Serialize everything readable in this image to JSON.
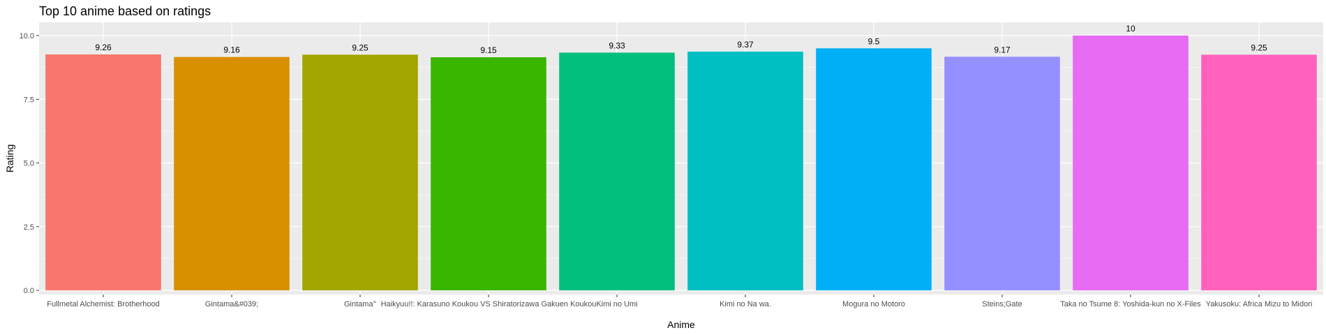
{
  "chart_data": {
    "type": "bar",
    "title": "Top 10 anime based on ratings",
    "xlabel": "Anime",
    "ylabel": "Rating",
    "ylim": [
      0,
      10
    ],
    "yticks": [
      "0.0",
      "2.5",
      "5.0",
      "7.5",
      "10.0"
    ],
    "ytick_values": [
      0,
      2.5,
      5,
      7.5,
      10
    ],
    "grid": true,
    "legend": "none",
    "categories": [
      "Fullmetal Alchemist: Brotherhood",
      "Gintama&#039;",
      "Gintama°",
      "Haikyuu!!: Karasuno Koukou VS Shiratorizawa Gakuen Koukou",
      "Kimi no Umi",
      "Kimi no Na wa.",
      "Mogura no Motoro",
      "Steins;Gate",
      "Taka no Tsume 8: Yoshida-kun no X-Files",
      "Yakusoku: Africa Mizu to Midori"
    ],
    "values": [
      9.26,
      9.16,
      9.25,
      9.15,
      9.33,
      9.37,
      9.5,
      9.17,
      10,
      9.25
    ],
    "value_labels": [
      "9.26",
      "9.16",
      "9.25",
      "9.15",
      "9.33",
      "9.37",
      "9.5",
      "9.17",
      "10",
      "9.25"
    ],
    "colors": [
      "#F8766D",
      "#D89000",
      "#A3A500",
      "#39B600",
      "#00BF7D",
      "#00BFC4",
      "#00B0F6",
      "#9590FF",
      "#E76BF3",
      "#FF62BC"
    ],
    "panel_background": "#EBEBEB",
    "grid_color": "#FFFFFF"
  }
}
